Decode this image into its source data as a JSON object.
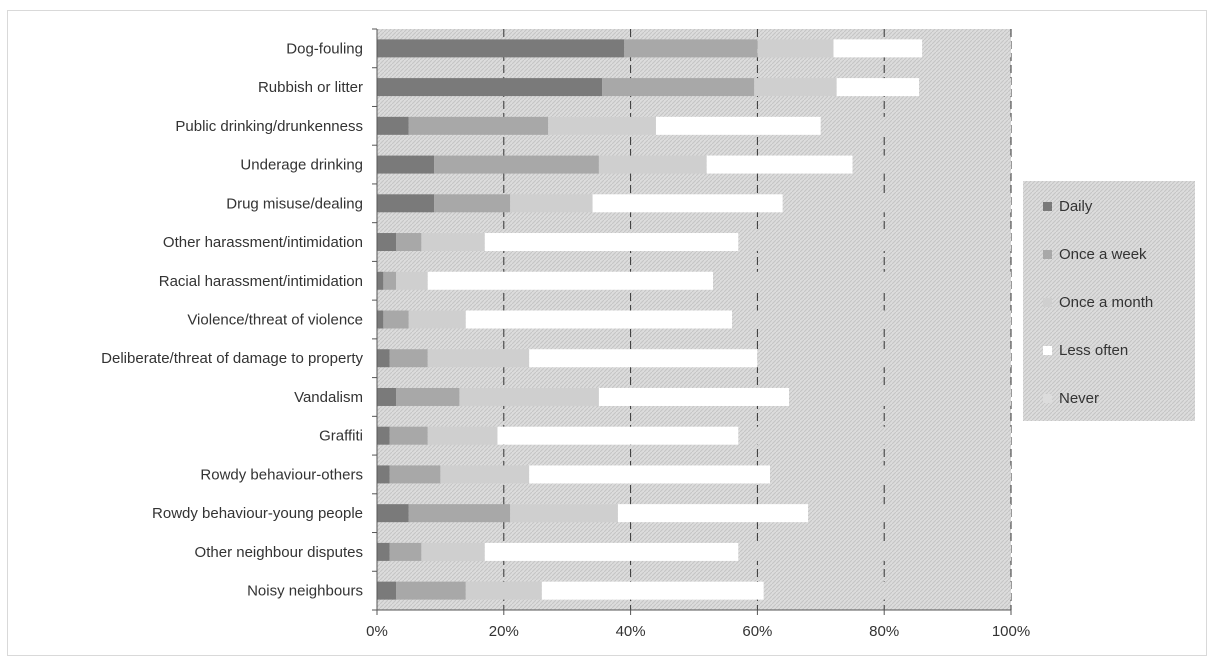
{
  "chart_data": {
    "type": "bar",
    "orientation": "horizontal",
    "stacked": "percent",
    "categories": [
      "Dog-fouling",
      "Rubbish or litter",
      "Public drinking/drunkenness",
      "Underage drinking",
      "Drug misuse/dealing",
      "Other harassment/intimidation",
      "Racial harassment/intimidation",
      "Violence/threat of violence",
      "Deliberate/threat of damage to property",
      "Vandalism",
      "Graffiti",
      "Rowdy behaviour-others",
      "Rowdy behaviour-young people",
      "Other neighbour disputes",
      "Noisy neighbours"
    ],
    "series": [
      {
        "name": "Daily",
        "color": "#7a7a7a",
        "values": [
          39,
          35.5,
          5,
          9,
          9,
          3,
          1,
          1,
          2,
          3,
          2,
          2,
          5,
          2,
          3
        ]
      },
      {
        "name": "Once a week",
        "color": "#a8a8a8",
        "values": [
          21,
          24,
          22,
          26,
          12,
          4,
          2,
          4,
          6,
          10,
          6,
          8,
          16,
          5,
          11
        ]
      },
      {
        "name": "Once a month",
        "color": "#cfcfcf",
        "values": [
          12,
          13,
          17,
          17,
          13,
          10,
          5,
          9,
          16,
          22,
          11,
          14,
          17,
          10,
          12
        ]
      },
      {
        "name": "Less often",
        "color": "#ffffff",
        "values": [
          14,
          13,
          26,
          23,
          30,
          40,
          45,
          42,
          36,
          30,
          38,
          38,
          30,
          40,
          35
        ]
      },
      {
        "name": "Never",
        "color": "#dcdcdc",
        "values": [
          14,
          14.5,
          30,
          25,
          36,
          43,
          47,
          44,
          40,
          35,
          43,
          38,
          32,
          43,
          39
        ]
      }
    ],
    "x_ticks": [
      "0%",
      "20%",
      "40%",
      "60%",
      "80%",
      "100%"
    ],
    "xlim": [
      0,
      100
    ],
    "grid": "vertical dashed",
    "legend_position": "right"
  }
}
